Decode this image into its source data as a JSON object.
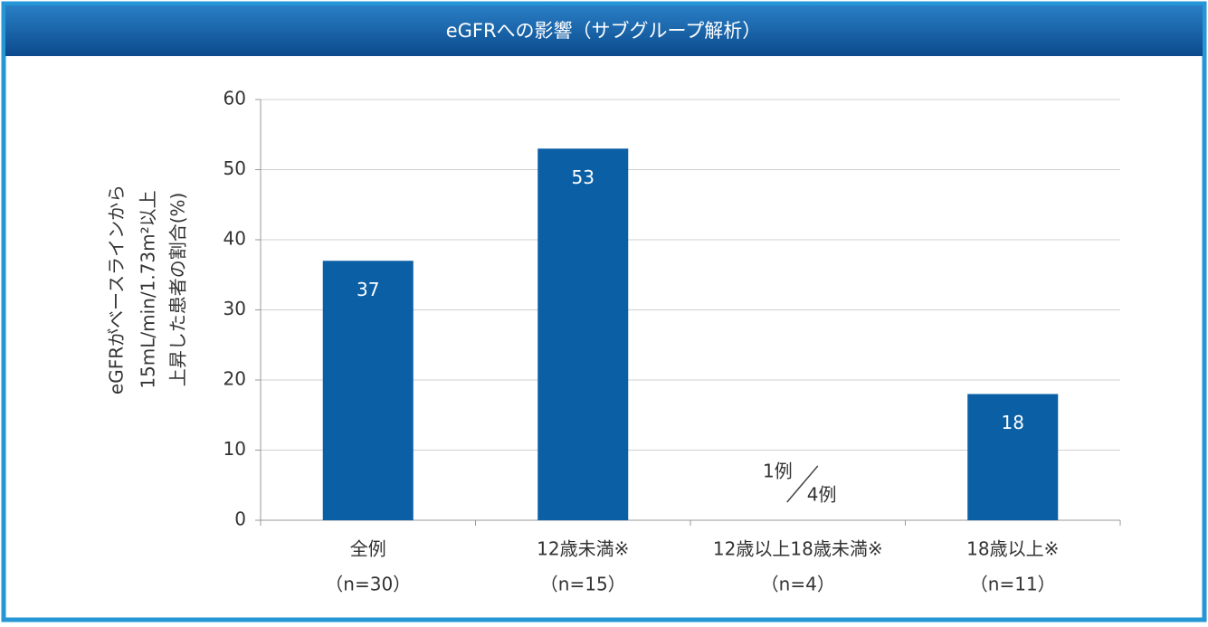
{
  "chart_data": {
    "type": "bar",
    "title": "eGFRへの影響（サブグループ解析）",
    "ylabel": [
      "eGFRがベースラインから",
      "15mL/min/1.73m²以上",
      "上昇した患者の割合(%)"
    ],
    "categories": [
      "全例",
      "12歳未満※",
      "12歳以上18歳未満※",
      "18歳以上※"
    ],
    "category_notes": [
      "（n=30）",
      "（n=15）",
      "（n=4）",
      "（n=11）"
    ],
    "values": [
      37,
      53,
      null,
      18
    ],
    "color": "#0b5fa5",
    "ylim": [
      0,
      60
    ],
    "yticks": [
      0,
      10,
      20,
      30,
      40,
      50,
      60
    ],
    "grid": true,
    "annotation": {
      "numerator": "1例",
      "denominator": "4例"
    }
  }
}
